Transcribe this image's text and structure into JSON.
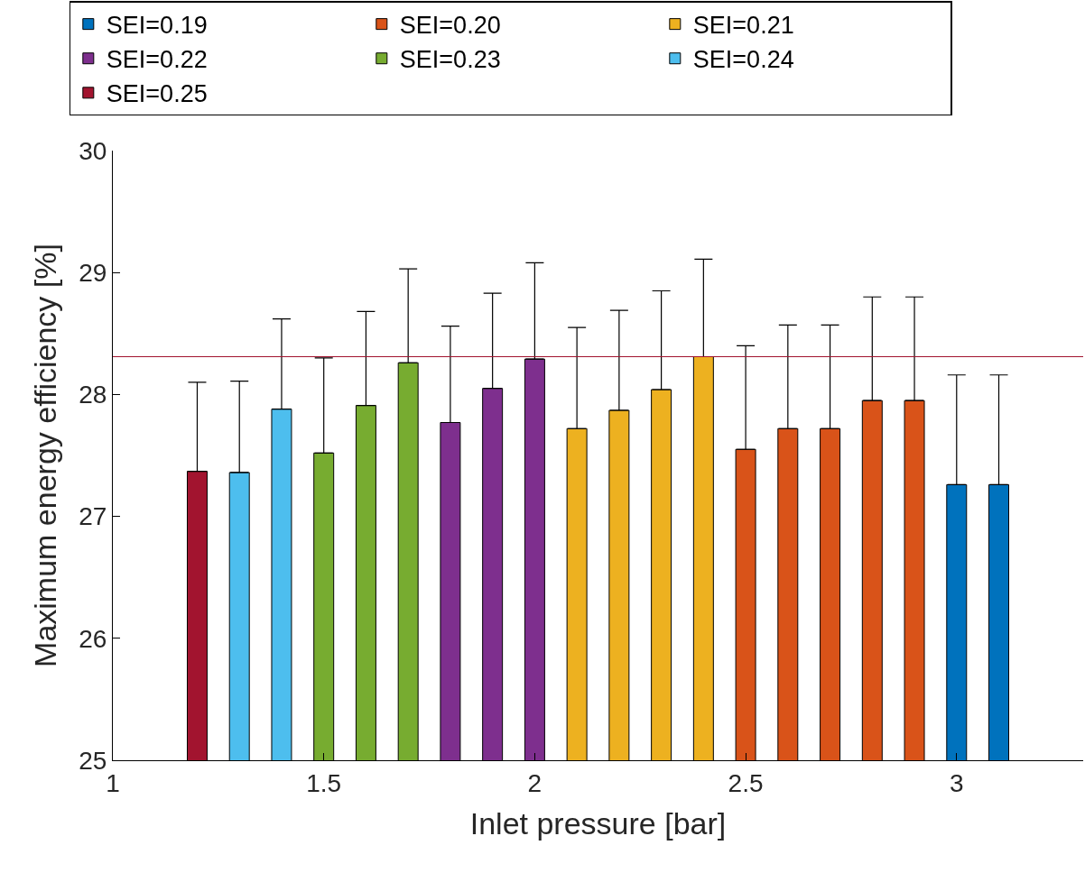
{
  "chart_data": {
    "type": "bar",
    "xlabel": "Inlet pressure [bar]",
    "ylabel": "Maximum energy efficiency [%]",
    "xlim": [
      1,
      3.3
    ],
    "xticks": [
      1,
      1.5,
      2,
      2.5,
      3
    ],
    "ylim": [
      25,
      30
    ],
    "yticks": [
      25,
      26,
      27,
      28,
      29,
      30
    ],
    "grid": false,
    "legend": "top",
    "series": [
      {
        "name": "SEI=0.19",
        "color": "#0072bd",
        "x": [
          3.0,
          3.1
        ],
        "values": [
          27.26,
          27.26
        ],
        "errors": [
          [
            27.26,
            28.16
          ],
          [
            27.26,
            28.16
          ]
        ]
      },
      {
        "name": "SEI=0.20",
        "color": "#d95319",
        "x": [
          2.5,
          2.6,
          2.7,
          2.8,
          2.9
        ],
        "values": [
          27.55,
          27.72,
          27.72,
          27.95,
          27.95
        ],
        "errors": [
          [
            27.55,
            28.4
          ],
          [
            27.72,
            28.57
          ],
          [
            27.72,
            28.57
          ],
          [
            27.95,
            28.8
          ],
          [
            27.95,
            28.8
          ]
        ]
      },
      {
        "name": "SEI=0.21",
        "color": "#edb120",
        "x": [
          2.1,
          2.2,
          2.3,
          2.4
        ],
        "values": [
          27.72,
          27.87,
          28.04,
          28.31
        ],
        "errors": [
          [
            27.72,
            28.55
          ],
          [
            27.87,
            28.69
          ],
          [
            28.04,
            28.85
          ],
          [
            28.31,
            29.11
          ]
        ]
      },
      {
        "name": "SEI=0.22",
        "color": "#7e2f8e",
        "x": [
          1.8,
          1.9,
          2.0
        ],
        "values": [
          27.77,
          28.05,
          28.29
        ],
        "errors": [
          [
            27.77,
            28.56
          ],
          [
            28.05,
            28.83
          ],
          [
            28.29,
            29.08
          ]
        ]
      },
      {
        "name": "SEI=0.23",
        "color": "#77ac30",
        "x": [
          1.5,
          1.6,
          1.7
        ],
        "values": [
          27.52,
          27.91,
          28.26
        ],
        "errors": [
          [
            27.52,
            28.3
          ],
          [
            27.91,
            28.68
          ],
          [
            28.26,
            29.03
          ]
        ]
      },
      {
        "name": "SEI=0.24",
        "color": "#4dbeee",
        "x": [
          1.3,
          1.4
        ],
        "values": [
          27.36,
          27.88
        ],
        "errors": [
          [
            27.36,
            28.11
          ],
          [
            27.88,
            28.62
          ]
        ]
      },
      {
        "name": "SEI=0.25",
        "color": "#a2142f",
        "x": [
          1.2
        ],
        "values": [
          27.37
        ],
        "errors": [
          [
            27.37,
            28.1
          ]
        ]
      }
    ],
    "ref_lines": [
      {
        "axis": "y",
        "value": 28.31,
        "color": "#a2142f"
      }
    ]
  }
}
